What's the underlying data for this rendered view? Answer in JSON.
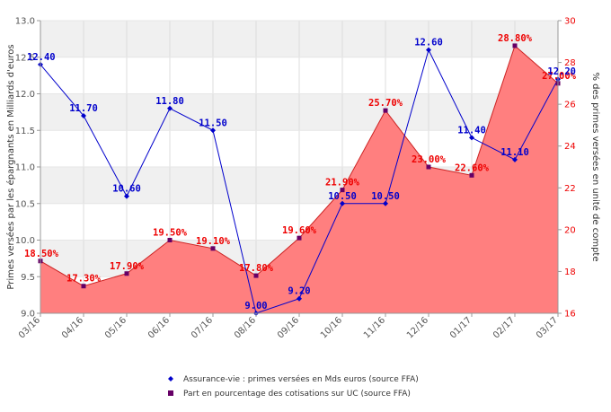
{
  "chart_data": {
    "type": "line",
    "title": "",
    "categories": [
      "03/16",
      "04/16",
      "05/16",
      "06/16",
      "07/16",
      "08/16",
      "09/16",
      "10/16",
      "11/16",
      "12/16",
      "01/17",
      "02/17",
      "03/17"
    ],
    "series": [
      {
        "name": "Assurance-vie : primes versées en Mds euros (source FFA)",
        "type": "line",
        "axis": "left",
        "color": "#0000cc",
        "marker": "diamond",
        "values": [
          12.4,
          11.7,
          10.6,
          11.8,
          11.5,
          9.0,
          9.2,
          10.5,
          10.5,
          12.6,
          11.4,
          11.1,
          12.2
        ],
        "labels": [
          "12.40",
          "11.70",
          "10.60",
          "11.80",
          "11.50",
          "9.00",
          "9.20",
          "10.50",
          "10.50",
          "12.60",
          "11.40",
          "11.10",
          "12.20"
        ]
      },
      {
        "name": "Part en pourcentage des cotisations sur UC (source FFA)",
        "type": "area",
        "axis": "right",
        "color": "#ee0000",
        "fill": "#ff7f7f",
        "line_color": "#cc2222",
        "marker": "square",
        "marker_color": "#660066",
        "values": [
          18.5,
          17.3,
          17.9,
          19.5,
          19.1,
          17.8,
          19.6,
          21.9,
          25.7,
          23.0,
          22.6,
          28.8,
          27.0
        ],
        "labels": [
          "18.50%",
          "17.30%",
          "17.90%",
          "19.50%",
          "19.10%",
          "17.80%",
          "19.60%",
          "21.90%",
          "25.70%",
          "23.00%",
          "22.60%",
          "28.80%",
          "27.00%"
        ]
      }
    ],
    "y_left": {
      "label": "Primes versées par les épargnants en Milliards d'euros",
      "ylim": [
        9.0,
        13.0
      ],
      "ticks": [
        "9.0",
        "9.5",
        "10.0",
        "10.5",
        "11.0",
        "11.5",
        "12.0",
        "12.5",
        "13.0"
      ],
      "tick_color": "#555555"
    },
    "y_right": {
      "label": "% des primes versées en unité de compte",
      "ylim": [
        16,
        30
      ],
      "ticks": [
        "16",
        "18",
        "20",
        "22",
        "24",
        "26",
        "28",
        "30"
      ],
      "tick_color": "#ee0000"
    },
    "grid": true,
    "legend_position": "bottom-center"
  }
}
